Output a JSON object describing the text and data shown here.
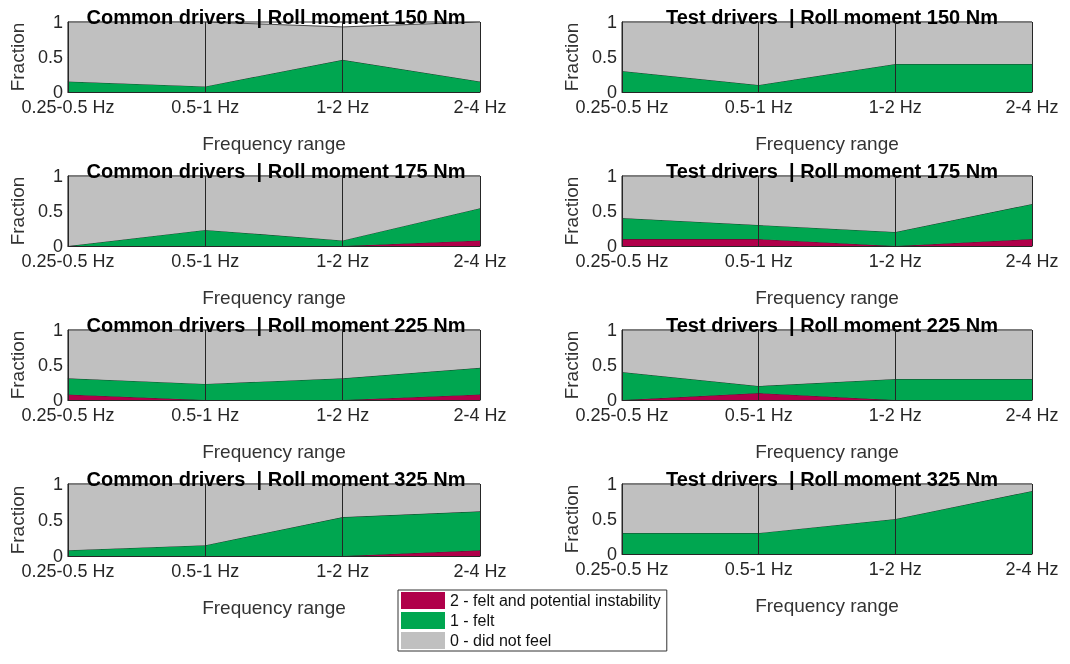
{
  "chart_data": [
    {
      "type": "area",
      "stacked": true,
      "title": "Common drivers  | Roll moment 150 Nm",
      "xlabel": "Frequency range",
      "ylabel": "Fraction",
      "categories": [
        "0.25-0.5 Hz",
        "0.5-1 Hz",
        "1-2 Hz",
        "2-4 Hz"
      ],
      "ylim": [
        0,
        1
      ],
      "yticks": [
        0,
        0.5,
        1
      ],
      "grid": "x",
      "series": [
        {
          "color": "#00a650",
          "values": [
            0.15,
            0.08,
            0.46,
            0.15
          ]
        },
        {
          "color": "#c0c0c0",
          "values": [
            0.85,
            0.92,
            0.47,
            0.85
          ]
        }
      ]
    },
    {
      "type": "area",
      "stacked": true,
      "title": "Test drivers  | Roll moment 150 Nm",
      "xlabel": "Frequency range",
      "ylabel": "Fraction",
      "categories": [
        "0.25-0.5 Hz",
        "0.5-1 Hz",
        "1-2 Hz",
        "2-4 Hz"
      ],
      "ylim": [
        0,
        1
      ],
      "yticks": [
        0,
        0.5,
        1
      ],
      "grid": "x",
      "series": [
        {
          "color": "#00a650",
          "values": [
            0.3,
            0.1,
            0.4,
            0.4
          ]
        },
        {
          "color": "#c0c0c0",
          "values": [
            0.7,
            0.9,
            0.6,
            0.6
          ]
        }
      ]
    },
    {
      "type": "area",
      "stacked": true,
      "title": "Common drivers  | Roll moment 175 Nm",
      "xlabel": "Frequency range",
      "ylabel": "Fraction",
      "categories": [
        "0.25-0.5 Hz",
        "0.5-1 Hz",
        "1-2 Hz",
        "2-4 Hz"
      ],
      "ylim": [
        0,
        1
      ],
      "yticks": [
        0,
        0.5,
        1
      ],
      "grid": "x",
      "series": [
        {
          "color": "#b0004a",
          "values": [
            0,
            0,
            0,
            0.08
          ]
        },
        {
          "color": "#00a650",
          "values": [
            0,
            0.23,
            0.08,
            0.46
          ]
        },
        {
          "color": "#c0c0c0",
          "values": [
            1,
            0.77,
            0.92,
            0.46
          ]
        }
      ]
    },
    {
      "type": "area",
      "stacked": true,
      "title": "Test drivers  | Roll moment 175 Nm",
      "xlabel": "Frequency range",
      "ylabel": "Fraction",
      "categories": [
        "0.25-0.5 Hz",
        "0.5-1 Hz",
        "1-2 Hz",
        "2-4 Hz"
      ],
      "ylim": [
        0,
        1
      ],
      "yticks": [
        0,
        0.5,
        1
      ],
      "grid": "x",
      "series": [
        {
          "color": "#b0004a",
          "values": [
            0.1,
            0.1,
            0,
            0.1
          ]
        },
        {
          "color": "#00a650",
          "values": [
            0.3,
            0.2,
            0.2,
            0.5
          ]
        },
        {
          "color": "#c0c0c0",
          "values": [
            0.6,
            0.7,
            0.8,
            0.4
          ]
        }
      ]
    },
    {
      "type": "area",
      "stacked": true,
      "title": "Common drivers  | Roll moment 225 Nm",
      "xlabel": "Frequency range",
      "ylabel": "Fraction",
      "categories": [
        "0.25-0.5 Hz",
        "0.5-1 Hz",
        "1-2 Hz",
        "2-4 Hz"
      ],
      "ylim": [
        0,
        1
      ],
      "yticks": [
        0,
        0.5,
        1
      ],
      "grid": "x",
      "series": [
        {
          "color": "#b0004a",
          "values": [
            0.08,
            0,
            0,
            0.08
          ]
        },
        {
          "color": "#00a650",
          "values": [
            0.23,
            0.23,
            0.31,
            0.38
          ]
        },
        {
          "color": "#c0c0c0",
          "values": [
            0.69,
            0.77,
            0.69,
            0.54
          ]
        }
      ]
    },
    {
      "type": "area",
      "stacked": true,
      "title": "Test drivers  | Roll moment 225 Nm",
      "xlabel": "Frequency range",
      "ylabel": "Fraction",
      "categories": [
        "0.25-0.5 Hz",
        "0.5-1 Hz",
        "1-2 Hz",
        "2-4 Hz"
      ],
      "ylim": [
        0,
        1
      ],
      "yticks": [
        0,
        0.5,
        1
      ],
      "grid": "x",
      "series": [
        {
          "color": "#b0004a",
          "values": [
            0,
            0.1,
            0,
            0
          ]
        },
        {
          "color": "#00a650",
          "values": [
            0.4,
            0.1,
            0.3,
            0.3
          ]
        },
        {
          "color": "#c0c0c0",
          "values": [
            0.6,
            0.8,
            0.7,
            0.7
          ]
        }
      ]
    },
    {
      "type": "area",
      "stacked": true,
      "title": "Common drivers  | Roll moment 325 Nm",
      "xlabel": "Frequency range",
      "ylabel": "Fraction",
      "categories": [
        "0.25-0.5 Hz",
        "0.5-1 Hz",
        "1-2 Hz",
        "2-4 Hz"
      ],
      "ylim": [
        0,
        1
      ],
      "yticks": [
        0,
        0.5,
        1
      ],
      "grid": "x",
      "legend": "bottom",
      "series": [
        {
          "name": "2 - felt and potential instability",
          "color": "#b0004a",
          "values": [
            0,
            0,
            0,
            0.08
          ]
        },
        {
          "name": "1 - felt",
          "color": "#00a650",
          "values": [
            0.08,
            0.15,
            0.54,
            0.54
          ]
        },
        {
          "name": "0 - did not feel",
          "color": "#c0c0c0",
          "values": [
            0.92,
            0.85,
            0.46,
            0.38
          ]
        }
      ]
    },
    {
      "type": "area",
      "stacked": true,
      "title": "Test drivers  | Roll moment 325 Nm",
      "xlabel": "Frequency range",
      "ylabel": "Fraction",
      "categories": [
        "0.25-0.5 Hz",
        "0.5-1 Hz",
        "1-2 Hz",
        "2-4 Hz"
      ],
      "ylim": [
        0,
        1
      ],
      "yticks": [
        0,
        0.5,
        1
      ],
      "grid": "x",
      "series": [
        {
          "color": "#00a650",
          "values": [
            0.3,
            0.3,
            0.5,
            0.9
          ]
        },
        {
          "color": "#c0c0c0",
          "values": [
            0.7,
            0.7,
            0.5,
            0.1
          ]
        }
      ]
    }
  ]
}
